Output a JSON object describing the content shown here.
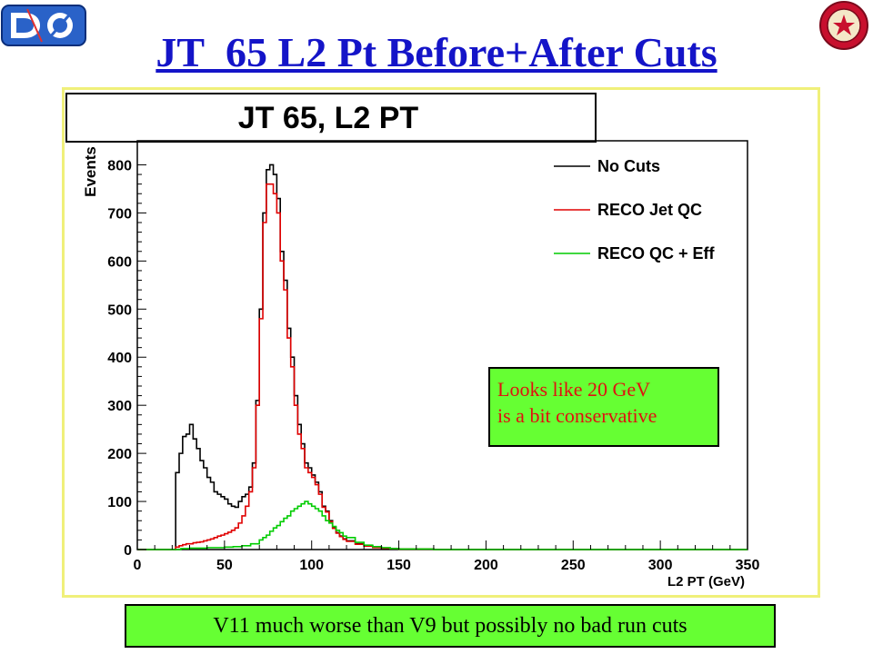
{
  "slide": {
    "title": "JT_65 L2 Pt  Before+After Cuts",
    "note_line1": "Looks like 20 GeV",
    "note_line2": "is a bit conservative",
    "footer": "V11 much worse than V9 but possibly no bad run cuts"
  },
  "logos": {
    "left": "dzero-logo",
    "right": "university-seal-logo"
  },
  "chart_data": {
    "type": "line",
    "title": "JT 65, L2 PT",
    "xlabel": "L2 PT (GeV)",
    "ylabel": "Events",
    "xlim": [
      0,
      350
    ],
    "ylim": [
      0,
      850
    ],
    "xticks": [
      0,
      50,
      100,
      150,
      200,
      250,
      300,
      350
    ],
    "yticks": [
      0,
      100,
      200,
      300,
      400,
      500,
      600,
      700,
      800
    ],
    "legend_position": "top-right",
    "series": [
      {
        "name": "No Cuts",
        "color": "#000000",
        "x": [
          0,
          20,
          22,
          24,
          26,
          28,
          30,
          32,
          34,
          36,
          38,
          40,
          42,
          44,
          46,
          48,
          50,
          52,
          54,
          56,
          58,
          60,
          62,
          64,
          66,
          68,
          70,
          72,
          74,
          76,
          78,
          80,
          82,
          84,
          86,
          88,
          90,
          92,
          94,
          96,
          98,
          100,
          102,
          104,
          106,
          108,
          110,
          112,
          114,
          116,
          118,
          120,
          125,
          130,
          135,
          140,
          145,
          150,
          160,
          170,
          180,
          200,
          250,
          300,
          350
        ],
        "y": [
          0,
          0,
          160,
          200,
          235,
          240,
          260,
          230,
          210,
          185,
          170,
          150,
          140,
          120,
          115,
          110,
          105,
          95,
          90,
          88,
          100,
          110,
          115,
          130,
          180,
          310,
          500,
          700,
          790,
          800,
          780,
          730,
          620,
          560,
          460,
          400,
          320,
          260,
          220,
          180,
          170,
          155,
          140,
          120,
          90,
          80,
          60,
          45,
          35,
          28,
          22,
          18,
          12,
          8,
          5,
          3,
          2,
          1,
          1,
          0,
          0,
          0,
          0,
          0,
          0
        ]
      },
      {
        "name": "RECO Jet QC",
        "color": "#e00000",
        "x": [
          0,
          20,
          22,
          24,
          26,
          28,
          30,
          32,
          34,
          36,
          38,
          40,
          42,
          44,
          46,
          48,
          50,
          52,
          54,
          56,
          58,
          60,
          62,
          64,
          66,
          68,
          70,
          72,
          74,
          76,
          78,
          80,
          82,
          84,
          86,
          88,
          90,
          92,
          94,
          96,
          98,
          100,
          102,
          104,
          106,
          108,
          110,
          112,
          114,
          116,
          118,
          120,
          125,
          130,
          135,
          140,
          145,
          150,
          160,
          170,
          180,
          200,
          250,
          300,
          350
        ],
        "y": [
          0,
          0,
          5,
          8,
          10,
          12,
          12,
          14,
          15,
          16,
          18,
          20,
          22,
          25,
          28,
          30,
          33,
          36,
          40,
          45,
          55,
          70,
          90,
          120,
          170,
          300,
          480,
          680,
          760,
          760,
          740,
          700,
          600,
          540,
          440,
          380,
          300,
          240,
          210,
          170,
          160,
          150,
          135,
          115,
          88,
          78,
          58,
          44,
          34,
          27,
          21,
          17,
          11,
          7,
          4,
          3,
          2,
          1,
          1,
          0,
          0,
          0,
          0,
          0,
          0
        ]
      },
      {
        "name": "RECO QC + Eff",
        "color": "#00cc00",
        "x": [
          0,
          20,
          25,
          30,
          35,
          40,
          45,
          50,
          55,
          60,
          65,
          70,
          72,
          74,
          76,
          78,
          80,
          82,
          84,
          86,
          88,
          90,
          92,
          94,
          96,
          98,
          100,
          102,
          104,
          106,
          108,
          110,
          112,
          114,
          116,
          118,
          120,
          125,
          130,
          135,
          140,
          145,
          150,
          160,
          170,
          180,
          200,
          250,
          300,
          350
        ],
        "y": [
          0,
          0,
          2,
          3,
          3,
          4,
          4,
          5,
          6,
          8,
          12,
          20,
          25,
          30,
          38,
          45,
          50,
          58,
          65,
          70,
          80,
          85,
          90,
          95,
          100,
          95,
          90,
          85,
          80,
          70,
          60,
          55,
          48,
          40,
          35,
          28,
          25,
          15,
          9,
          6,
          4,
          2,
          1,
          1,
          0,
          0,
          0,
          0,
          0,
          0
        ]
      }
    ]
  }
}
